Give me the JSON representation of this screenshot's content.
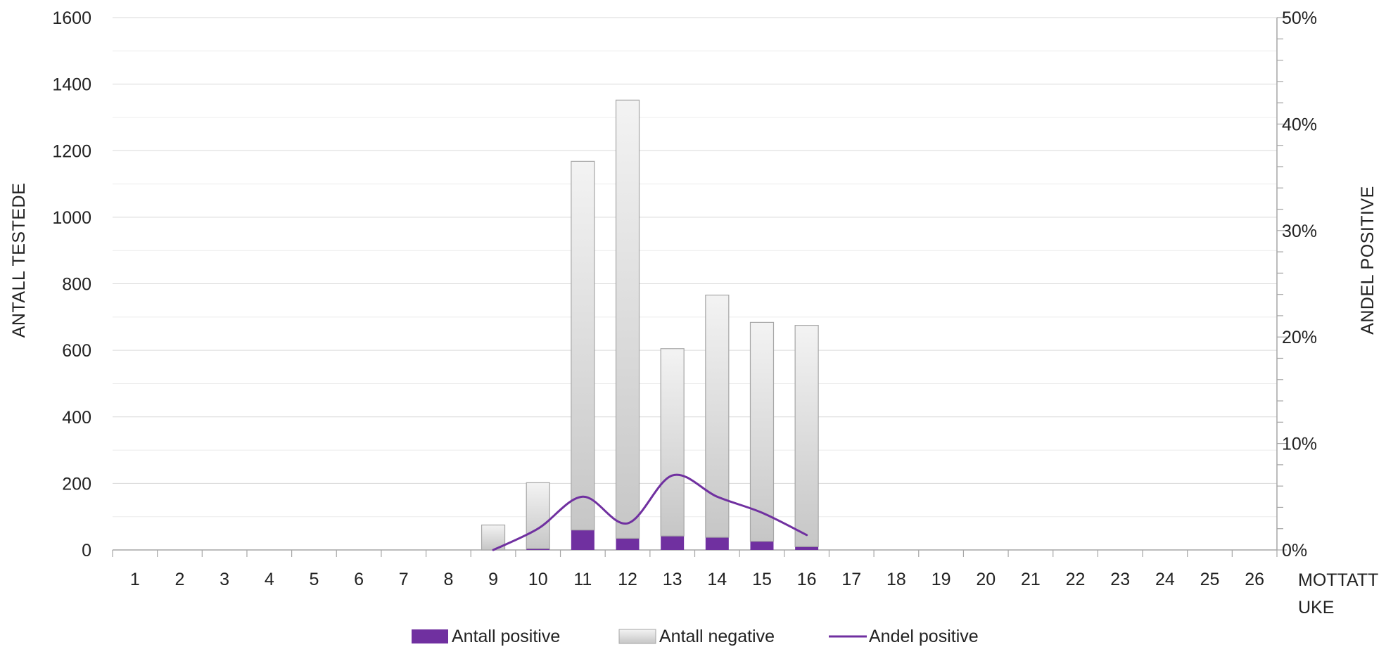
{
  "chart_data": {
    "type": "bar",
    "stacked": true,
    "title": "",
    "categories": [
      "1",
      "2",
      "3",
      "4",
      "5",
      "6",
      "7",
      "8",
      "9",
      "10",
      "11",
      "12",
      "13",
      "14",
      "15",
      "16",
      "17",
      "18",
      "19",
      "20",
      "21",
      "22",
      "23",
      "24",
      "25",
      "26"
    ],
    "series": [
      {
        "name": "Antall positive",
        "kind": "bar",
        "axis": "left",
        "color": "#7030a0",
        "values": [
          0,
          0,
          0,
          0,
          0,
          0,
          0,
          0,
          0,
          4,
          60,
          35,
          42,
          38,
          26,
          10,
          0,
          0,
          0,
          0,
          0,
          0,
          0,
          0,
          0,
          0
        ]
      },
      {
        "name": "Antall negative",
        "kind": "bar",
        "axis": "left",
        "color": "#d4d4d4",
        "values": [
          0,
          0,
          0,
          0,
          0,
          0,
          0,
          0,
          75,
          198,
          1108,
          1317,
          563,
          728,
          658,
          665,
          0,
          0,
          0,
          0,
          0,
          0,
          0,
          0,
          0,
          0
        ]
      },
      {
        "name": "Andel positive",
        "kind": "line",
        "axis": "right",
        "color": "#7030a0",
        "values": [
          null,
          null,
          null,
          null,
          null,
          null,
          null,
          null,
          0,
          2,
          5,
          2.5,
          7,
          5,
          3.5,
          1.4,
          null,
          null,
          null,
          null,
          null,
          null,
          null,
          null,
          null,
          null
        ]
      }
    ],
    "y_left": {
      "label": "ANTALL TESTEDE",
      "range": [
        0,
        1600
      ],
      "ticks": [
        "0",
        "200",
        "400",
        "600",
        "800",
        "1000",
        "1200",
        "1400",
        "1600"
      ]
    },
    "y_right": {
      "label": "ANDEL POSITIVE",
      "range": [
        0,
        50
      ],
      "ticks": [
        "0%",
        "10%",
        "20%",
        "30%",
        "40%",
        "50%"
      ]
    },
    "x_axis": {
      "label_line1": "MOTTATT",
      "label_line2": "UKE"
    },
    "legend": {
      "position": "bottom",
      "items": [
        "Antall positive",
        "Antall negative",
        "Andel positive"
      ]
    },
    "grid": true
  }
}
